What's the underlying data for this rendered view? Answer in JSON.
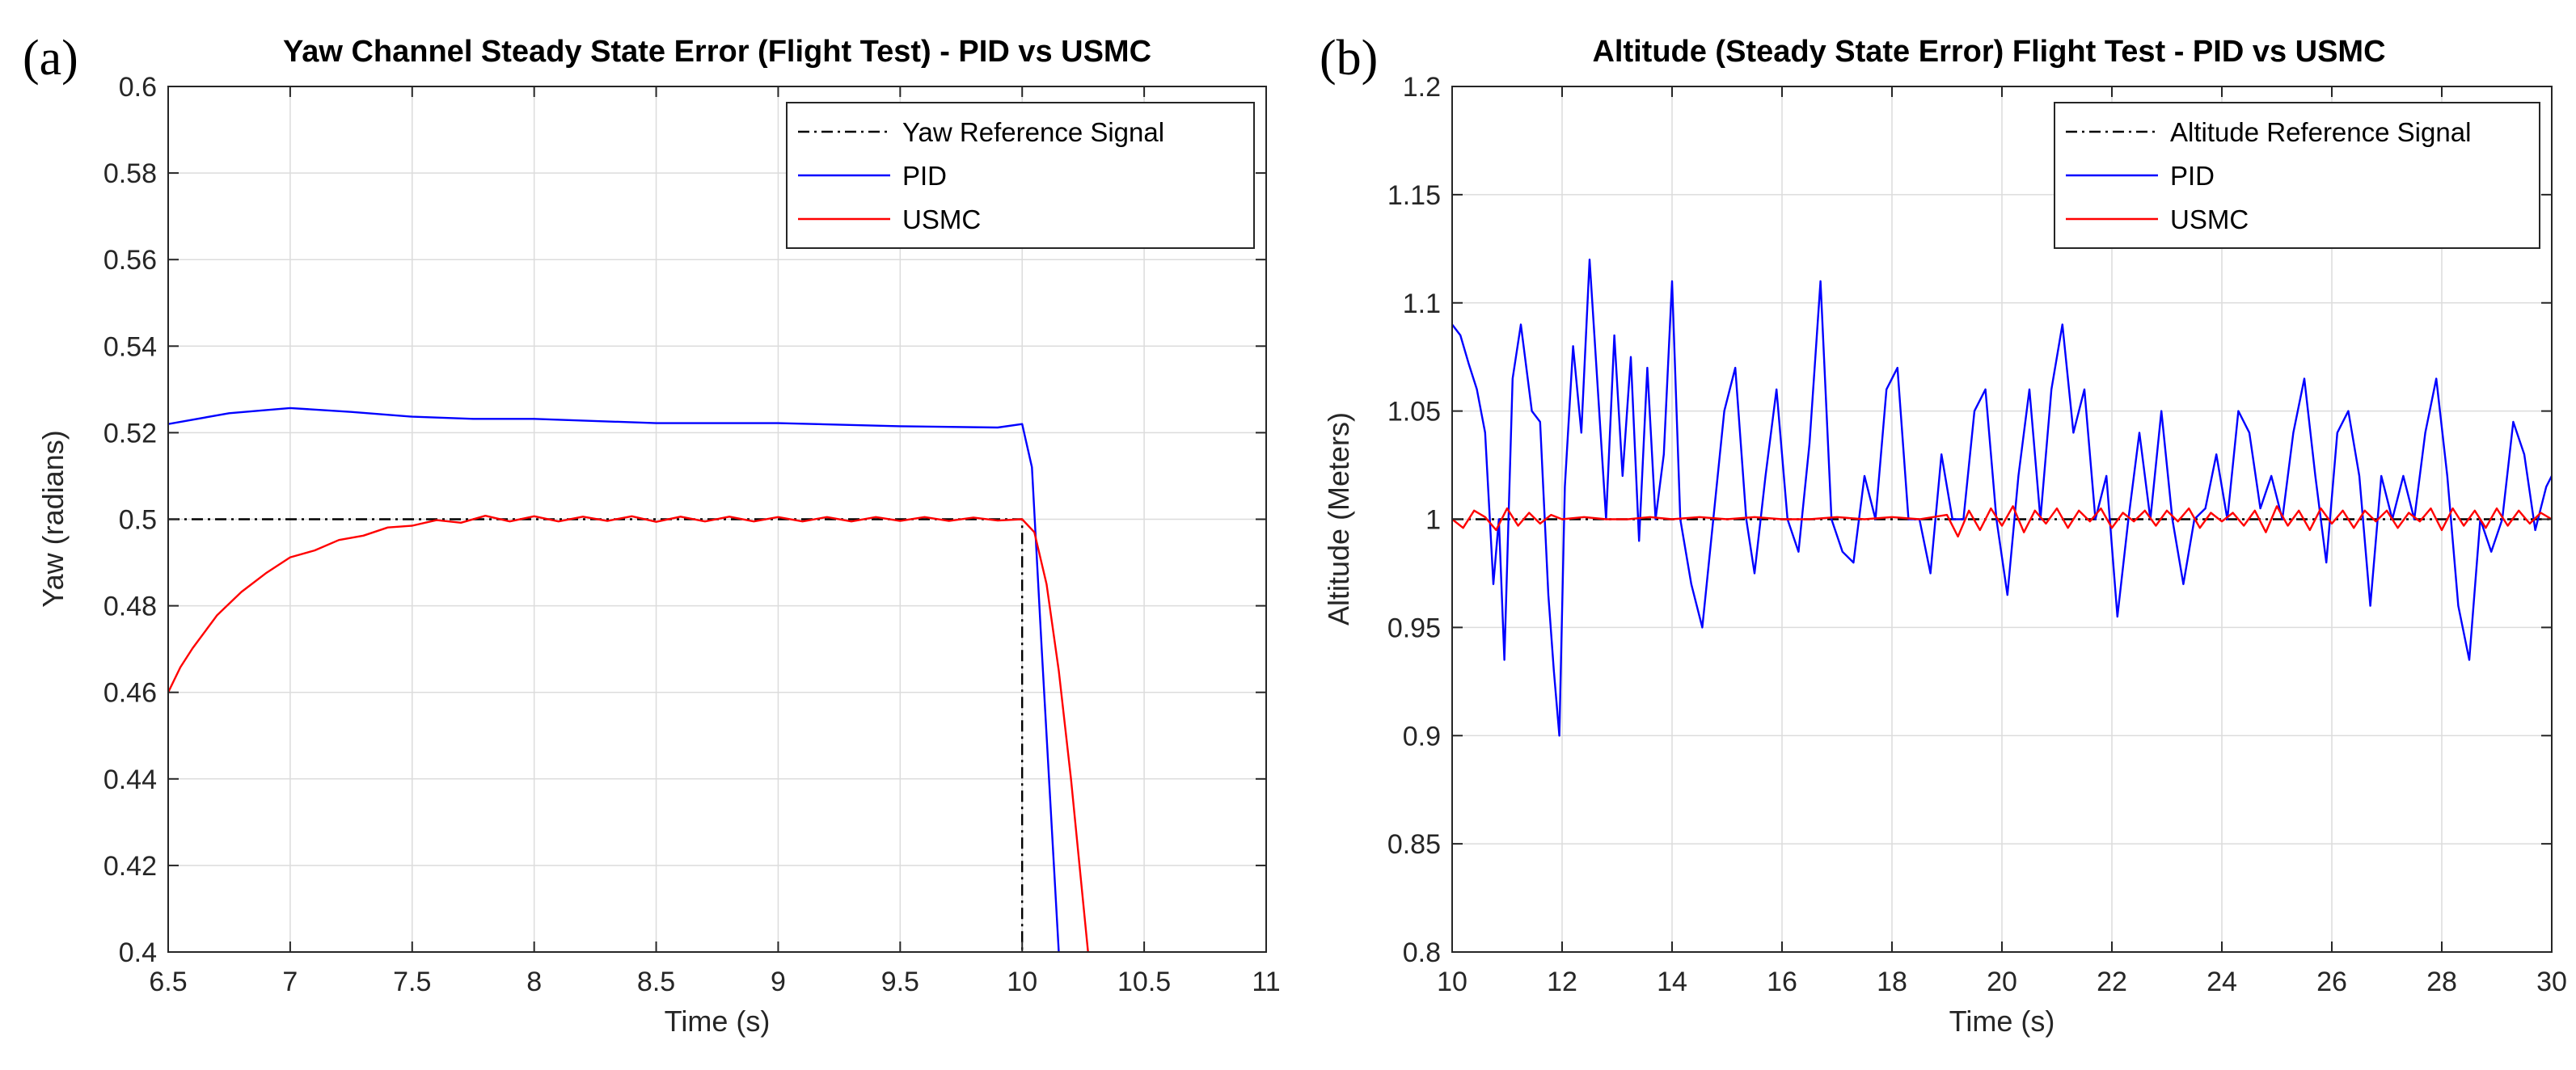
{
  "chart_data": [
    {
      "id": "a",
      "type": "line",
      "panel_label": "(a)",
      "title": "Yaw Channel Steady State Error (Flight Test) - PID vs USMC",
      "xlabel": "Time (s)",
      "ylabel": "Yaw (radians)",
      "xlim": [
        6.5,
        11
      ],
      "ylim": [
        0.4,
        0.6
      ],
      "xticks": [
        6.5,
        7,
        7.5,
        8,
        8.5,
        9,
        9.5,
        10,
        10.5,
        11
      ],
      "xtick_labels": [
        "6.5",
        "7",
        "7.5",
        "8",
        "8.5",
        "9",
        "9.5",
        "10",
        "10.5",
        "11"
      ],
      "yticks": [
        0.4,
        0.42,
        0.44,
        0.46,
        0.48,
        0.5,
        0.52,
        0.54,
        0.56,
        0.58,
        0.6
      ],
      "ytick_labels": [
        "0.4",
        "0.42",
        "0.44",
        "0.46",
        "0.48",
        "0.5",
        "0.52",
        "0.54",
        "0.56",
        "0.58",
        "0.6"
      ],
      "grid": true,
      "legend_position": "top-right",
      "series": [
        {
          "name": "Yaw Reference Signal",
          "color": "#000000",
          "style": "dashdot",
          "x": [
            6.5,
            10.0,
            10.0
          ],
          "y": [
            0.5,
            0.5,
            0.4
          ]
        },
        {
          "name": "PID",
          "color": "#0000ff",
          "style": "solid",
          "x": [
            6.5,
            6.75,
            7.0,
            7.25,
            7.5,
            7.75,
            8.0,
            8.5,
            9.0,
            9.5,
            9.9,
            10.0,
            10.04,
            10.08,
            10.15
          ],
          "y": [
            0.522,
            0.5245,
            0.5257,
            0.5248,
            0.5237,
            0.5232,
            0.5232,
            0.5222,
            0.5222,
            0.5215,
            0.5212,
            0.522,
            0.512,
            0.47,
            0.4
          ]
        },
        {
          "name": "USMC",
          "color": "#ff0000",
          "style": "solid",
          "x": [
            6.5,
            6.55,
            6.6,
            6.7,
            6.8,
            6.9,
            7.0,
            7.1,
            7.2,
            7.3,
            7.4,
            7.5,
            7.6,
            7.7,
            7.8,
            7.9,
            8.0,
            8.1,
            8.2,
            8.3,
            8.4,
            8.5,
            8.6,
            8.7,
            8.8,
            8.9,
            9.0,
            9.1,
            9.2,
            9.3,
            9.4,
            9.5,
            9.6,
            9.7,
            9.8,
            9.9,
            10.0,
            10.05,
            10.1,
            10.15,
            10.2,
            10.27
          ],
          "y": [
            0.46,
            0.4658,
            0.4702,
            0.4778,
            0.4832,
            0.4875,
            0.4912,
            0.4928,
            0.4952,
            0.4962,
            0.4981,
            0.4985,
            0.4998,
            0.4992,
            0.5008,
            0.4995,
            0.5007,
            0.4995,
            0.5006,
            0.4996,
            0.5007,
            0.4994,
            0.5006,
            0.4995,
            0.5006,
            0.4995,
            0.5005,
            0.4995,
            0.5005,
            0.4995,
            0.5005,
            0.4996,
            0.5005,
            0.4996,
            0.5004,
            0.4997,
            0.5,
            0.497,
            0.485,
            0.465,
            0.44,
            0.4
          ]
        }
      ]
    },
    {
      "id": "b",
      "type": "line",
      "panel_label": "(b)",
      "title": "Altitude (Steady State Error) Flight Test - PID vs USMC",
      "xlabel": "Time (s)",
      "ylabel": "Altitude (Meters)",
      "xlim": [
        10,
        30
      ],
      "ylim": [
        0.8,
        1.2
      ],
      "xticks": [
        10,
        12,
        14,
        16,
        18,
        20,
        22,
        24,
        26,
        28,
        30
      ],
      "xtick_labels": [
        "10",
        "12",
        "14",
        "16",
        "18",
        "20",
        "22",
        "24",
        "26",
        "28",
        "30"
      ],
      "yticks": [
        0.8,
        0.85,
        0.9,
        0.95,
        1.0,
        1.05,
        1.1,
        1.15,
        1.2
      ],
      "ytick_labels": [
        "0.8",
        "0.85",
        "0.9",
        "0.95",
        "1",
        "1.05",
        "1.1",
        "1.15",
        "1.2"
      ],
      "grid": true,
      "legend_position": "top-right",
      "series": [
        {
          "name": "Altitude Reference Signal",
          "color": "#000000",
          "style": "dashdot",
          "x": [
            10,
            30
          ],
          "y": [
            1.0,
            1.0
          ]
        },
        {
          "name": "PID",
          "color": "#0000ff",
          "style": "solid",
          "x": [
            10.0,
            10.15,
            10.3,
            10.45,
            10.6,
            10.75,
            10.85,
            10.95,
            11.1,
            11.25,
            11.45,
            11.6,
            11.75,
            11.85,
            11.95,
            12.05,
            12.2,
            12.35,
            12.5,
            12.65,
            12.8,
            12.95,
            13.1,
            13.25,
            13.4,
            13.55,
            13.7,
            13.85,
            14.0,
            14.15,
            14.35,
            14.55,
            14.75,
            14.95,
            15.15,
            15.35,
            15.5,
            15.7,
            15.9,
            16.1,
            16.3,
            16.5,
            16.7,
            16.9,
            17.1,
            17.3,
            17.5,
            17.7,
            17.9,
            18.1,
            18.3,
            18.5,
            18.7,
            18.9,
            19.1,
            19.3,
            19.5,
            19.7,
            19.9,
            20.1,
            20.3,
            20.5,
            20.7,
            20.9,
            21.1,
            21.3,
            21.5,
            21.7,
            21.9,
            22.1,
            22.3,
            22.5,
            22.7,
            22.9,
            23.1,
            23.3,
            23.5,
            23.7,
            23.9,
            24.1,
            24.3,
            24.5,
            24.7,
            24.9,
            25.1,
            25.3,
            25.5,
            25.7,
            25.9,
            26.1,
            26.3,
            26.5,
            26.7,
            26.9,
            27.1,
            27.3,
            27.5,
            27.7,
            27.9,
            28.1,
            28.3,
            28.5,
            28.7,
            28.9,
            29.1,
            29.3,
            29.5,
            29.7,
            29.9,
            30.0
          ],
          "y": [
            1.09,
            1.085,
            1.072,
            1.06,
            1.04,
            0.97,
            1.0,
            0.935,
            1.065,
            1.09,
            1.05,
            1.045,
            0.965,
            0.93,
            0.9,
            1.015,
            1.08,
            1.04,
            1.12,
            1.06,
            1.0,
            1.085,
            1.02,
            1.075,
            0.99,
            1.07,
            1.0,
            1.03,
            1.11,
            1.0,
            0.97,
            0.95,
            1.0,
            1.05,
            1.07,
            1.0,
            0.975,
            1.02,
            1.06,
            1.0,
            0.985,
            1.035,
            1.11,
            1.0,
            0.985,
            0.98,
            1.02,
            1.0,
            1.06,
            1.07,
            1.0,
            1.0,
            0.975,
            1.03,
            1.0,
            1.0,
            1.05,
            1.06,
            1.0,
            0.965,
            1.02,
            1.06,
            1.0,
            1.06,
            1.09,
            1.04,
            1.06,
            1.0,
            1.02,
            0.955,
            1.0,
            1.04,
            1.0,
            1.05,
            1.0,
            0.97,
            1.0,
            1.005,
            1.03,
            1.0,
            1.05,
            1.04,
            1.005,
            1.02,
            1.0,
            1.04,
            1.065,
            1.02,
            0.98,
            1.04,
            1.05,
            1.02,
            0.96,
            1.02,
            1.0,
            1.02,
            1.0,
            1.04,
            1.065,
            1.02,
            0.96,
            0.935,
            1.0,
            0.985,
            1.0,
            1.045,
            1.03,
            0.995,
            1.015,
            1.02
          ]
        },
        {
          "name": "USMC",
          "color": "#ff0000",
          "style": "solid",
          "x": [
            10.0,
            10.2,
            10.4,
            10.6,
            10.8,
            11.0,
            11.2,
            11.4,
            11.6,
            11.8,
            12.0,
            12.4,
            12.8,
            13.2,
            13.6,
            14.0,
            14.5,
            15.0,
            15.5,
            16.0,
            16.5,
            17.0,
            17.5,
            18.0,
            18.5,
            19.0,
            19.2,
            19.4,
            19.6,
            19.8,
            20.0,
            20.2,
            20.4,
            20.6,
            20.8,
            21.0,
            21.2,
            21.4,
            21.6,
            21.8,
            22.0,
            22.2,
            22.4,
            22.6,
            22.8,
            23.0,
            23.2,
            23.4,
            23.6,
            23.8,
            24.0,
            24.2,
            24.4,
            24.6,
            24.8,
            25.0,
            25.2,
            25.4,
            25.6,
            25.8,
            26.0,
            26.2,
            26.4,
            26.6,
            26.8,
            27.0,
            27.2,
            27.4,
            27.6,
            27.8,
            28.0,
            28.2,
            28.4,
            28.6,
            28.8,
            29.0,
            29.2,
            29.4,
            29.6,
            29.8,
            30.0
          ],
          "y": [
            1.0,
            0.996,
            1.004,
            1.001,
            0.995,
            1.005,
            0.997,
            1.003,
            0.998,
            1.002,
            1.0,
            1.001,
            1.0,
            1.0,
            1.001,
            1.0,
            1.001,
            1.0,
            1.001,
            1.0,
            1.0,
            1.001,
            1.0,
            1.001,
            1.0,
            1.002,
            0.992,
            1.004,
            0.995,
            1.005,
            0.997,
            1.006,
            0.994,
            1.004,
            0.998,
            1.005,
            0.996,
            1.004,
            0.999,
            1.005,
            0.996,
            1.003,
            0.999,
            1.004,
            0.997,
            1.004,
            0.999,
            1.005,
            0.996,
            1.003,
            0.999,
            1.003,
            0.997,
            1.004,
            0.994,
            1.006,
            0.997,
            1.004,
            0.995,
            1.005,
            0.998,
            1.004,
            0.996,
            1.004,
            0.999,
            1.004,
            0.996,
            1.003,
            0.999,
            1.005,
            0.995,
            1.005,
            0.997,
            1.004,
            0.996,
            1.005,
            0.997,
            1.004,
            0.998,
            1.003,
            1.0
          ]
        }
      ]
    }
  ]
}
